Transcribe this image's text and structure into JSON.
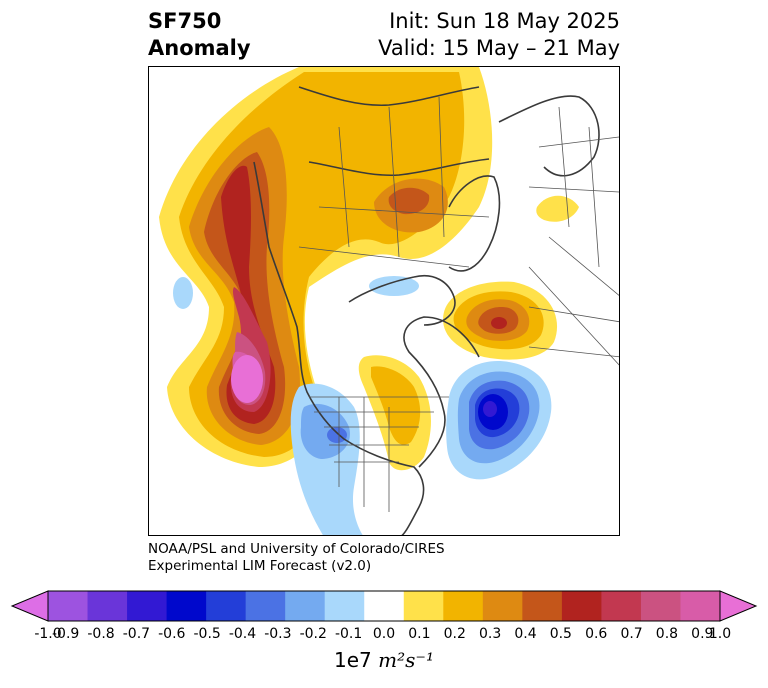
{
  "title": {
    "line1": "SF750",
    "line2": "Anomaly"
  },
  "init": "Init: Sun 18 May 2025",
  "valid": "Valid: 15 May – 21 May",
  "credit": {
    "line1": "NOAA/PSL and University of Colorado/CIRES",
    "line2": "Experimental LIM Forecast (v2.0)"
  },
  "colorbar": {
    "colors": [
      "#dd6ee6",
      "#9d53e0",
      "#6a35d9",
      "#3219d3",
      "#0008cc",
      "#233ed8",
      "#4b72e4",
      "#74aaf0",
      "#a9d8fb",
      "#ffffff",
      "#ffe14a",
      "#f2b400",
      "#de8a12",
      "#c4561a",
      "#b1231f",
      "#c23850",
      "#cb5281",
      "#d85ca8",
      "#e86fd6"
    ],
    "ticks": [
      "-1.0",
      "-0.9",
      "-0.8",
      "-0.7",
      "-0.6",
      "-0.5",
      "-0.4",
      "-0.3",
      "-0.2",
      "-0.1",
      "0.0",
      "0.1",
      "0.2",
      "0.3",
      "0.4",
      "0.5",
      "0.6",
      "0.7",
      "0.8",
      "0.9",
      "1.0"
    ],
    "units_prefix": "1e7",
    "units_math": "m²s⁻¹"
  }
}
